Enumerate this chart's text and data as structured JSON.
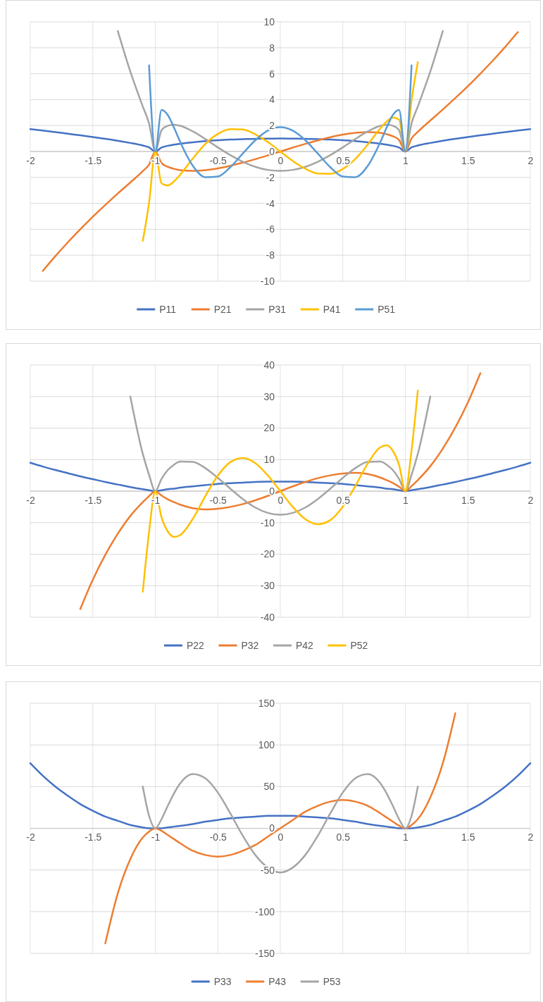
{
  "chart_data": [
    {
      "type": "line",
      "x": [
        -2,
        -1.9,
        -1.8,
        -1.7,
        -1.6,
        -1.5,
        -1.4,
        -1.3,
        -1.2,
        -1.1,
        -1.05,
        -1,
        -0.95,
        -0.9,
        -0.85,
        -0.8,
        -0.7,
        -0.6,
        -0.5,
        -0.4,
        -0.3,
        -0.2,
        -0.1,
        0,
        0.1,
        0.2,
        0.3,
        0.4,
        0.5,
        0.6,
        0.7,
        0.8,
        0.85,
        0.9,
        0.95,
        1,
        1.05,
        1.1,
        1.2,
        1.3,
        1.4,
        1.5,
        1.6,
        1.7,
        1.8,
        1.9,
        2
      ],
      "series": [
        {
          "name": "P11",
          "color": "#4472c4",
          "values": [
            1.73,
            1.62,
            1.5,
            1.37,
            1.25,
            1.12,
            0.98,
            0.83,
            0.66,
            0.46,
            0.32,
            0,
            0.31,
            0.44,
            0.53,
            0.6,
            0.71,
            0.8,
            0.87,
            0.92,
            0.95,
            0.98,
            0.99,
            1,
            0.99,
            0.98,
            0.95,
            0.92,
            0.87,
            0.8,
            0.71,
            0.6,
            0.53,
            0.44,
            0.31,
            0,
            0.32,
            0.46,
            0.66,
            0.83,
            0.98,
            1.12,
            1.25,
            1.37,
            1.5,
            1.62,
            1.73
          ]
        },
        {
          "name": "P21",
          "color": "#ed7d31",
          "values": [
            null,
            -9.21,
            -8.08,
            -7.01,
            -6,
            -5.03,
            -4.12,
            -3.24,
            -2.39,
            -1.51,
            -1.01,
            0,
            -0.89,
            -1.18,
            -1.34,
            -1.44,
            -1.5,
            -1.44,
            -1.3,
            -1.1,
            -0.86,
            -0.59,
            -0.3,
            0,
            0.3,
            0.59,
            0.86,
            1.1,
            1.3,
            1.44,
            1.5,
            1.44,
            1.34,
            1.18,
            0.89,
            0,
            1.01,
            1.51,
            2.39,
            3.24,
            4.12,
            5.03,
            6,
            7.01,
            8.08,
            9.21,
            null
          ]
        },
        {
          "name": "P31",
          "color": "#a5a5a5",
          "values": [
            null,
            null,
            null,
            null,
            null,
            null,
            null,
            9.29,
            6.17,
            3.47,
            2.17,
            0,
            1.64,
            1.99,
            2.07,
            1.98,
            1.55,
            0.96,
            0.32,
            -0.28,
            -0.79,
            -1.18,
            -1.42,
            -1.5,
            -1.42,
            -1.18,
            -0.79,
            -0.28,
            0.32,
            0.96,
            1.55,
            1.98,
            2.07,
            1.99,
            1.64,
            0,
            2.17,
            3.47,
            6.17,
            9.29,
            null,
            null,
            null,
            null,
            null,
            null,
            null
          ]
        },
        {
          "name": "P41",
          "color": "#ffc000",
          "values": [
            null,
            null,
            null,
            null,
            null,
            null,
            null,
            null,
            null,
            -6.89,
            -3.96,
            0,
            -2.46,
            -2.62,
            -2.3,
            -1.78,
            -0.54,
            0.58,
            1.35,
            1.72,
            1.7,
            1.33,
            0.73,
            0,
            -0.73,
            -1.33,
            -1.7,
            -1.72,
            -1.35,
            -0.58,
            0.54,
            1.78,
            2.3,
            2.62,
            2.46,
            0,
            3.96,
            6.89,
            null,
            null,
            null,
            null,
            null,
            null,
            null,
            null,
            null
          ]
        },
        {
          "name": "P51",
          "color": "#5b9bd5",
          "values": [
            null,
            null,
            null,
            null,
            null,
            null,
            null,
            null,
            null,
            null,
            6.65,
            0,
            3.2,
            2.81,
            1.83,
            0.72,
            -1.1,
            -1.98,
            -1.93,
            -1.21,
            -0.16,
            0.87,
            1.61,
            1.88,
            1.61,
            0.87,
            -0.16,
            -1.21,
            -1.93,
            -1.98,
            -1.1,
            0.72,
            1.83,
            2.81,
            3.2,
            0,
            6.65,
            null,
            null,
            null,
            null,
            null,
            null,
            null,
            null,
            null,
            null
          ]
        }
      ],
      "xlim": [
        -2,
        2
      ],
      "xticks": [
        -2,
        -1.5,
        -1,
        -0.5,
        0,
        0.5,
        1,
        1.5,
        2
      ],
      "ylim": [
        -10,
        10
      ],
      "yticks": [
        -10,
        -8,
        -6,
        -4,
        -2,
        0,
        2,
        4,
        6,
        8,
        10
      ],
      "grid": true,
      "legend": "bottom"
    },
    {
      "type": "line",
      "x": [
        -2,
        -1.9,
        -1.8,
        -1.7,
        -1.6,
        -1.5,
        -1.4,
        -1.3,
        -1.2,
        -1.1,
        -1.05,
        -1,
        -0.95,
        -0.9,
        -0.85,
        -0.8,
        -0.7,
        -0.6,
        -0.5,
        -0.4,
        -0.3,
        -0.2,
        -0.1,
        0,
        0.1,
        0.2,
        0.3,
        0.4,
        0.5,
        0.6,
        0.7,
        0.8,
        0.85,
        0.9,
        0.95,
        1,
        1.05,
        1.1,
        1.2,
        1.3,
        1.4,
        1.5,
        1.6,
        1.7,
        1.8,
        1.9,
        2
      ],
      "series": [
        {
          "name": "P22",
          "color": "#4472c4",
          "values": [
            9,
            7.8,
            6.7,
            5.7,
            4.7,
            3.8,
            2.9,
            2.1,
            1.3,
            0.6,
            0.3,
            0,
            0.3,
            0.6,
            0.8,
            1.1,
            1.5,
            1.9,
            2.3,
            2.5,
            2.7,
            2.9,
            3,
            3,
            3,
            2.9,
            2.7,
            2.5,
            2.3,
            1.9,
            1.5,
            1.1,
            0.8,
            0.6,
            0.3,
            0,
            0.3,
            0.6,
            1.3,
            2.1,
            2.9,
            3.8,
            4.7,
            5.7,
            6.7,
            7.8,
            9
          ]
        },
        {
          "name": "P32",
          "color": "#ed7d31",
          "values": [
            null,
            null,
            null,
            null,
            -37.4,
            -28.1,
            -20.2,
            -13.5,
            -7.9,
            -3.5,
            -1.6,
            0,
            -1.4,
            -2.6,
            -3.5,
            -4.3,
            -5.4,
            -5.8,
            -5.6,
            -5,
            -4.1,
            -2.9,
            -1.5,
            0,
            1.5,
            2.9,
            4.1,
            5,
            5.6,
            5.8,
            5.4,
            4.3,
            3.5,
            2.6,
            1.4,
            0,
            1.6,
            3.5,
            7.9,
            13.5,
            20.2,
            28.1,
            37.4,
            null,
            null,
            null,
            null
          ]
        },
        {
          "name": "P42",
          "color": "#a5a5a5",
          "values": [
            null,
            null,
            null,
            null,
            null,
            null,
            null,
            null,
            30,
            11.8,
            5.2,
            0,
            3.9,
            6.7,
            8.4,
            9.4,
            9.3,
            7.3,
            4.2,
            0.8,
            -2.5,
            -5.2,
            -6.9,
            -7.5,
            -6.9,
            -5.2,
            -2.5,
            0.8,
            4.2,
            7.3,
            9.3,
            9.4,
            8.4,
            6.7,
            3.9,
            0,
            5.2,
            11.8,
            30,
            null,
            null,
            null,
            null,
            null,
            null,
            null,
            null
          ]
        },
        {
          "name": "P52",
          "color": "#ffc000",
          "values": [
            null,
            null,
            null,
            null,
            null,
            null,
            null,
            null,
            null,
            -31.9,
            -13,
            0,
            -8.3,
            -12.8,
            -14.5,
            -13.9,
            -8.8,
            -1.6,
            4.9,
            9.2,
            10.5,
            8.9,
            5,
            0,
            -5,
            -8.9,
            -10.5,
            -9.2,
            -4.9,
            1.6,
            8.8,
            13.9,
            14.5,
            12.8,
            8.3,
            0,
            13,
            31.9,
            null,
            null,
            null,
            null,
            null,
            null,
            null,
            null,
            null
          ]
        }
      ],
      "xlim": [
        -2,
        2
      ],
      "xticks": [
        -2,
        -1.5,
        -1,
        -0.5,
        0,
        0.5,
        1,
        1.5,
        2
      ],
      "ylim": [
        -40,
        40
      ],
      "yticks": [
        -40,
        -30,
        -20,
        -10,
        0,
        10,
        20,
        30,
        40
      ],
      "grid": true,
      "legend": "bottom"
    },
    {
      "type": "line",
      "x": [
        -2,
        -1.9,
        -1.8,
        -1.7,
        -1.6,
        -1.5,
        -1.4,
        -1.3,
        -1.2,
        -1.1,
        -1.05,
        -1,
        -0.95,
        -0.9,
        -0.85,
        -0.8,
        -0.7,
        -0.6,
        -0.5,
        -0.4,
        -0.3,
        -0.2,
        -0.1,
        0,
        0.1,
        0.2,
        0.3,
        0.4,
        0.5,
        0.6,
        0.7,
        0.8,
        0.85,
        0.9,
        0.95,
        1,
        1.05,
        1.1,
        1.2,
        1.3,
        1.4,
        1.5,
        1.6,
        1.7,
        1.8,
        1.9,
        2
      ],
      "series": [
        {
          "name": "P33",
          "color": "#4472c4",
          "values": [
            78,
            63,
            50,
            39,
            29,
            21,
            14,
            9,
            4,
            1,
            0,
            0,
            0,
            1,
            2,
            3,
            5,
            8,
            10,
            12,
            13,
            14,
            15,
            15,
            15,
            14,
            13,
            12,
            10,
            8,
            5,
            3,
            2,
            1,
            0,
            0,
            0,
            1,
            4,
            9,
            14,
            21,
            29,
            39,
            50,
            63,
            78
          ]
        },
        {
          "name": "P43",
          "color": "#ed7d31",
          "values": [
            null,
            null,
            null,
            null,
            null,
            null,
            -138,
            -78,
            -37,
            -11,
            -4,
            0,
            -3,
            -8,
            -13,
            -18,
            -27,
            -32,
            -34,
            -32,
            -27,
            -20,
            -10,
            0,
            10,
            20,
            27,
            32,
            34,
            32,
            27,
            18,
            13,
            8,
            3,
            0,
            4,
            11,
            37,
            78,
            138,
            null,
            null,
            null,
            null,
            null,
            null
          ]
        },
        {
          "name": "P53",
          "color": "#a5a5a5",
          "values": [
            null,
            null,
            null,
            null,
            null,
            null,
            null,
            null,
            null,
            50,
            15,
            0,
            11,
            27,
            42,
            54,
            65,
            60,
            43,
            18,
            -9,
            -32,
            -47,
            -53,
            -47,
            -32,
            -9,
            18,
            43,
            60,
            65,
            54,
            42,
            27,
            11,
            0,
            15,
            50,
            null,
            null,
            null,
            null,
            null,
            null,
            null,
            null,
            null
          ]
        }
      ],
      "xlim": [
        -2,
        2
      ],
      "xticks": [
        -2,
        -1.5,
        -1,
        -0.5,
        0,
        0.5,
        1,
        1.5,
        2
      ],
      "ylim": [
        -150,
        150
      ],
      "yticks": [
        -150,
        -100,
        -50,
        0,
        50,
        100,
        150
      ],
      "grid": true,
      "legend": "bottom"
    }
  ]
}
